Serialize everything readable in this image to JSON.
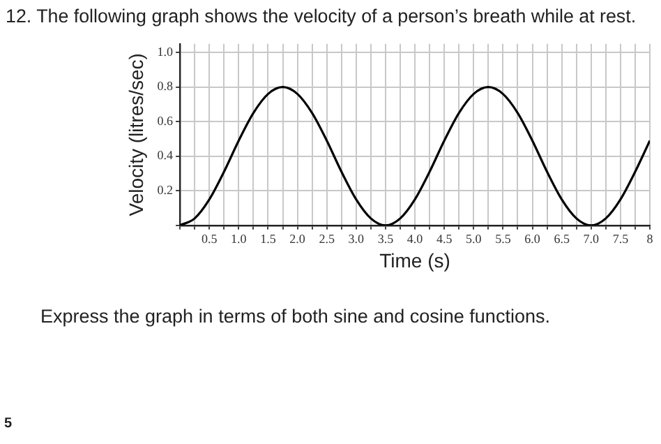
{
  "chart_data": {
    "type": "line",
    "title": "12. The following graph shows the velocity of a person’s breath while at rest.",
    "xlabel": "Time (s)",
    "ylabel": "Velocity (litres/sec)",
    "annotations": [
      "Express the graph in terms of both sine and cosine functions.",
      "5"
    ],
    "x": [
      0,
      0.25,
      0.5,
      0.75,
      1,
      1.25,
      1.5,
      1.75,
      2,
      2.25,
      2.5,
      2.75,
      3,
      3.25,
      3.5,
      3.75,
      4,
      4.25,
      4.5,
      4.75,
      5,
      5.25,
      5.5,
      5.75,
      6,
      6.25,
      6.5,
      6.75,
      7,
      7.25,
      7.5,
      7.75,
      8
    ],
    "series": [
      {
        "color": "#000000",
        "values": [
          0,
          0.04,
          0.15,
          0.31,
          0.49,
          0.65,
          0.76,
          0.8,
          0.76,
          0.65,
          0.49,
          0.31,
          0.15,
          0.04,
          0,
          0.04,
          0.15,
          0.31,
          0.49,
          0.65,
          0.76,
          0.8,
          0.76,
          0.65,
          0.49,
          0.31,
          0.15,
          0.04,
          0,
          0.04,
          0.15,
          0.31,
          0.49
        ]
      }
    ],
    "xlim": [
      0,
      8
    ],
    "ylim": [
      0,
      1.05
    ],
    "xticks": [
      {
        "value": 0,
        "label": null
      },
      {
        "value": 0.25,
        "label": null
      },
      {
        "value": 0.5,
        "label": "0.5"
      },
      {
        "value": 0.75,
        "label": null
      },
      {
        "value": 1,
        "label": "1.0"
      },
      {
        "value": 1.25,
        "label": null
      },
      {
        "value": 1.5,
        "label": "1.5"
      },
      {
        "value": 1.75,
        "label": null
      },
      {
        "value": 2,
        "label": "2.0"
      },
      {
        "value": 2.25,
        "label": null
      },
      {
        "value": 2.5,
        "label": "2.5"
      },
      {
        "value": 2.75,
        "label": null
      },
      {
        "value": 3,
        "label": "3.0"
      },
      {
        "value": 3.25,
        "label": null
      },
      {
        "value": 3.5,
        "label": "3.5"
      },
      {
        "value": 3.75,
        "label": null
      },
      {
        "value": 4,
        "label": "4.0"
      },
      {
        "value": 4.25,
        "label": null
      },
      {
        "value": 4.5,
        "label": "4.5"
      },
      {
        "value": 4.75,
        "label": null
      },
      {
        "value": 5,
        "label": "5.0"
      },
      {
        "value": 5.25,
        "label": null
      },
      {
        "value": 5.5,
        "label": "5.5"
      },
      {
        "value": 5.75,
        "label": null
      },
      {
        "value": 6,
        "label": "6.0"
      },
      {
        "value": 6.25,
        "label": null
      },
      {
        "value": 6.5,
        "label": "6.5"
      },
      {
        "value": 6.75,
        "label": null
      },
      {
        "value": 7,
        "label": "7.0"
      },
      {
        "value": 7.25,
        "label": null
      },
      {
        "value": 7.5,
        "label": "7.5"
      },
      {
        "value": 7.75,
        "label": null
      },
      {
        "value": 8,
        "label": "8"
      }
    ],
    "yticks": [
      {
        "value": 0,
        "label": null
      },
      {
        "value": 0.2,
        "label": "0.2"
      },
      {
        "value": 0.4,
        "label": "0.4"
      },
      {
        "value": 0.6,
        "label": "0.6"
      },
      {
        "value": 0.8,
        "label": "0.8"
      },
      {
        "value": 1,
        "label": "1.0"
      }
    ],
    "grid": true,
    "legend": false,
    "marker": "none",
    "line_style": "solid"
  }
}
